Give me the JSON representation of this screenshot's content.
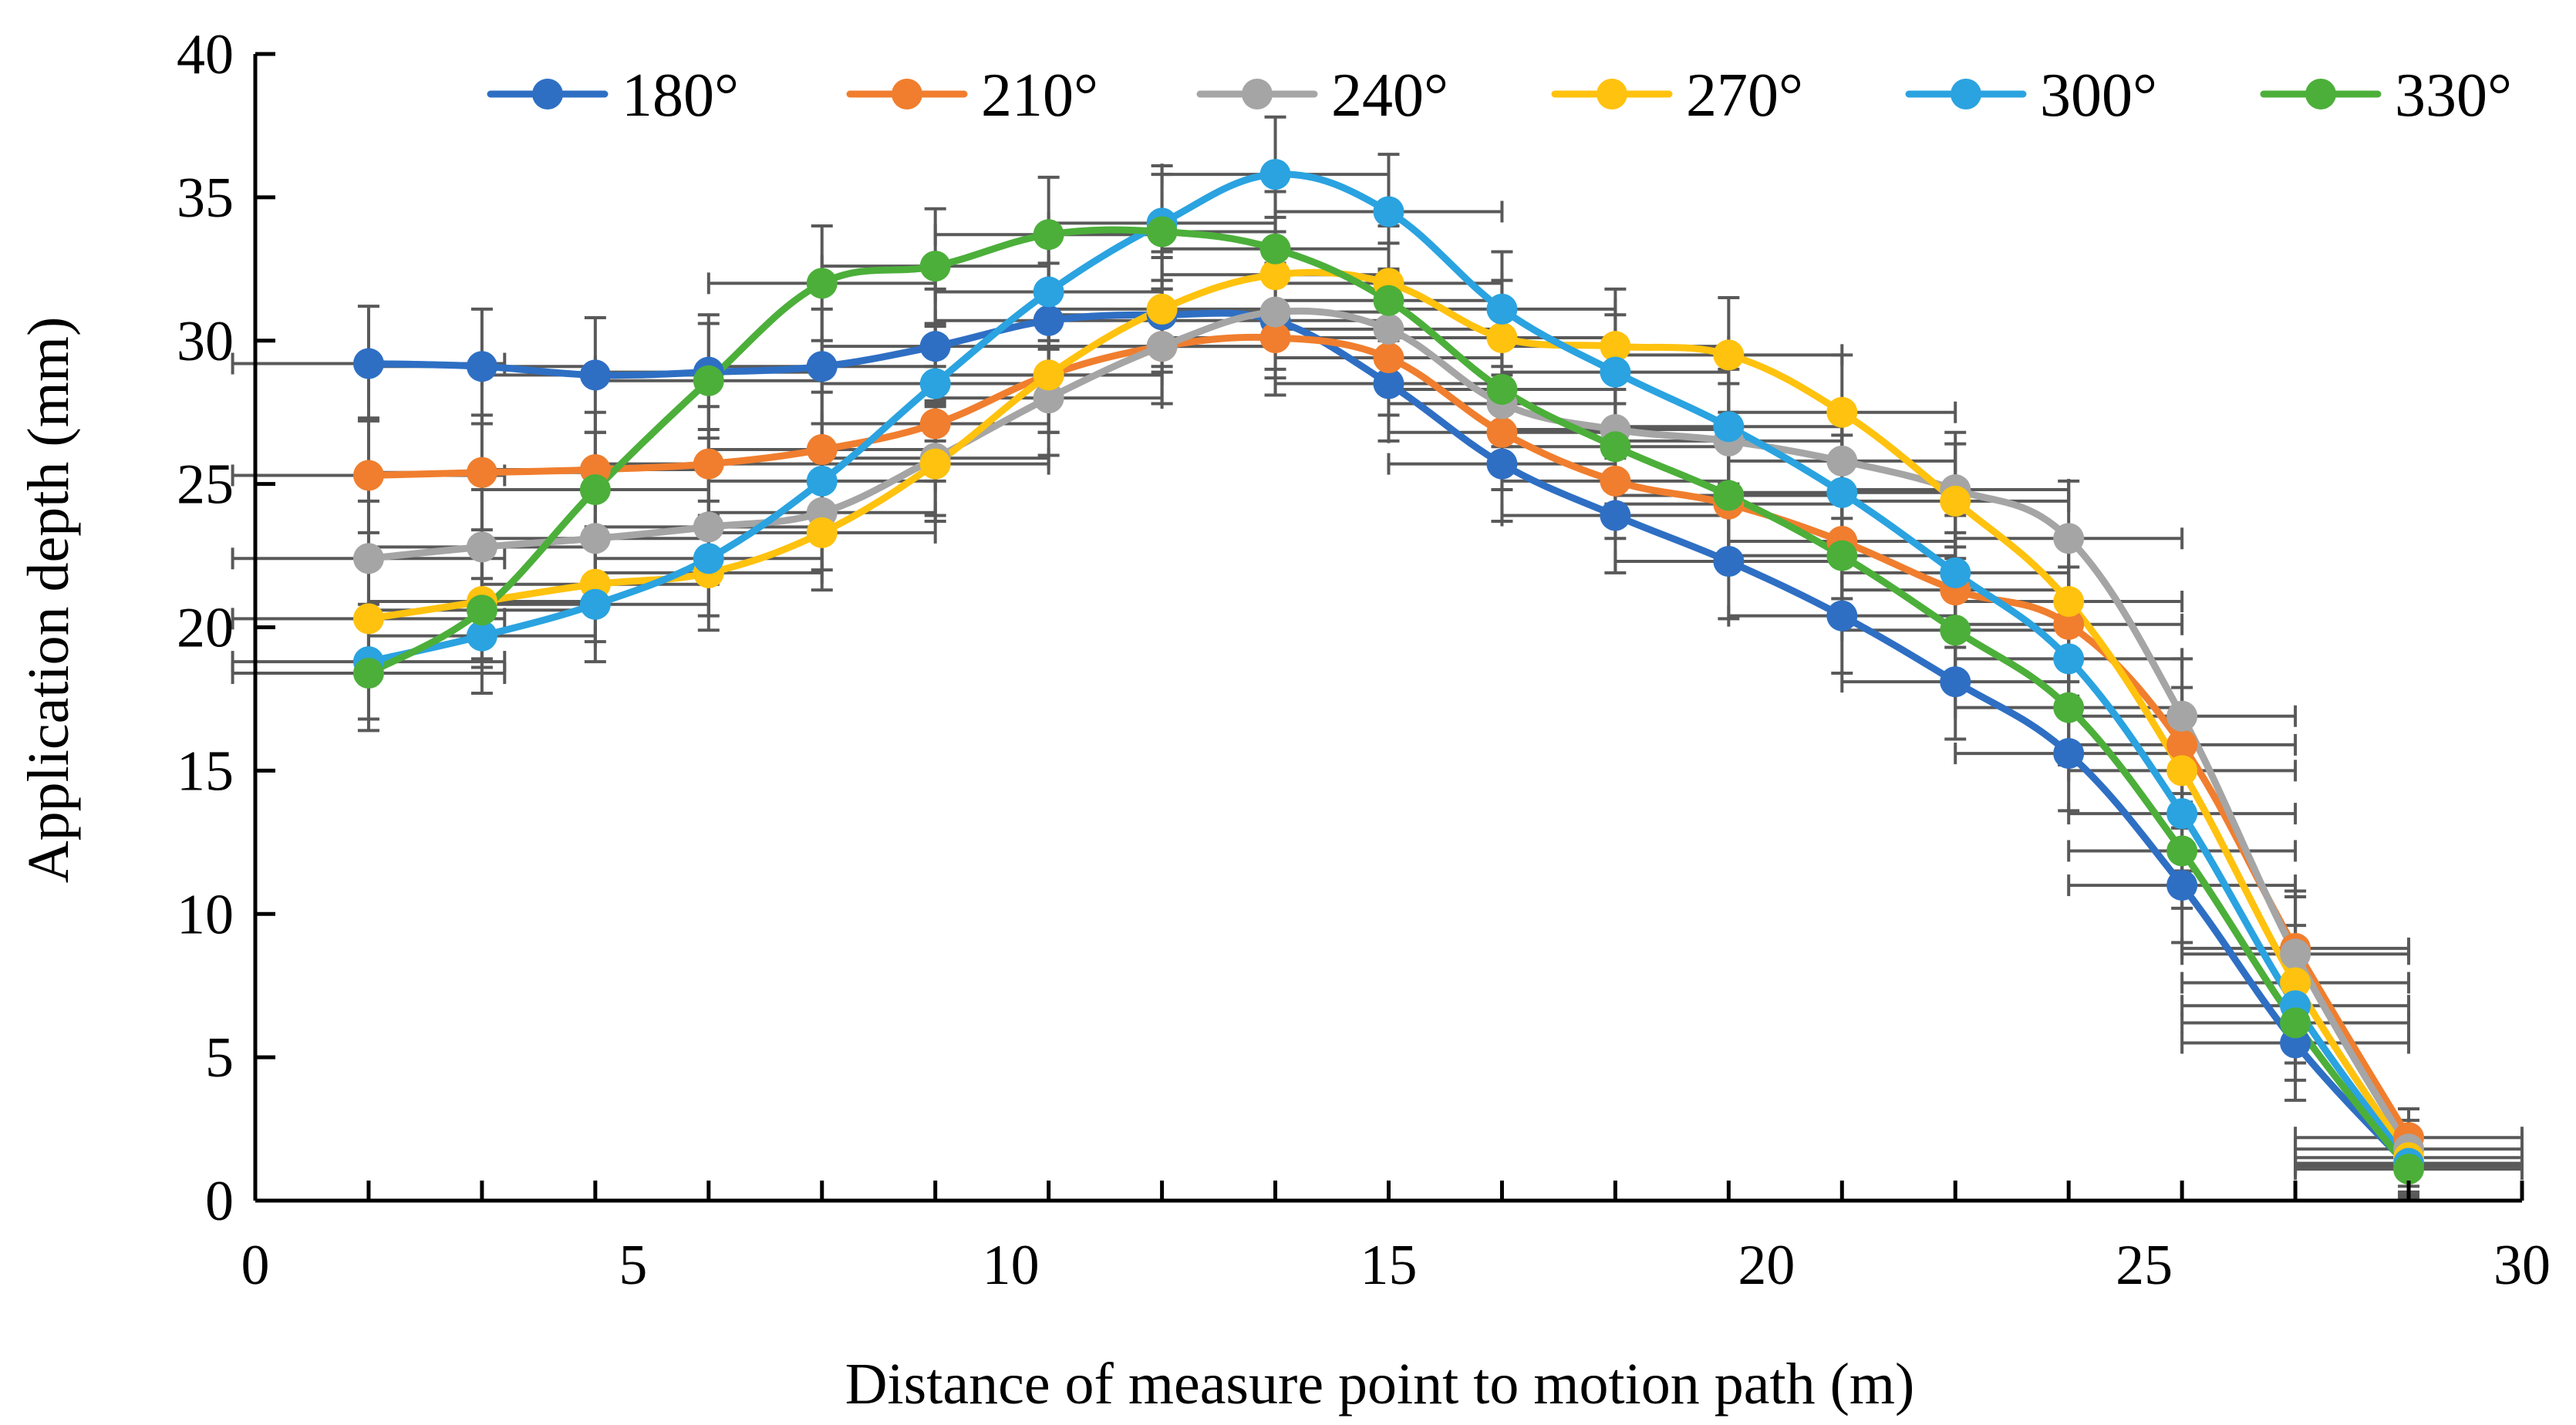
{
  "chart_data": {
    "type": "line",
    "title": "",
    "xlabel": "Distance of measure point to motion path (m)",
    "ylabel": "Application depth (mm)",
    "xlim": [
      0,
      30
    ],
    "ylim": [
      0,
      40
    ],
    "xticks": [
      0,
      5,
      10,
      15,
      20,
      25,
      30
    ],
    "yticks": [
      0,
      5,
      10,
      15,
      20,
      25,
      30,
      35,
      40
    ],
    "grid": false,
    "legend_position": "top",
    "x": [
      1.5,
      3,
      4.5,
      6,
      7.5,
      9,
      10.5,
      12,
      13.5,
      15,
      16.5,
      18,
      19.5,
      21,
      22.5,
      24,
      25.5,
      27,
      28.5
    ],
    "series": [
      {
        "name": "180°",
        "color": "#2E6FC4",
        "values": [
          29.2,
          29.1,
          28.8,
          28.9,
          29.1,
          29.8,
          30.7,
          30.9,
          30.7,
          28.5,
          25.7,
          23.9,
          22.3,
          20.4,
          18.1,
          15.6,
          11.0,
          5.5,
          1.2
        ],
        "x_error": [
          1.8,
          1.5,
          1.5,
          1.5,
          1.5,
          1.5,
          1.5,
          1.5,
          1.5,
          1.5,
          1.5,
          1.5,
          1.5,
          1.5,
          1.5,
          1.5,
          1.5,
          1.5,
          1.5
        ],
        "y_error": [
          2.0,
          2.0,
          2.0,
          2.0,
          2.0,
          2.0,
          2.0,
          2.0,
          2.0,
          2.0,
          2.0,
          2.0,
          2.0,
          2.0,
          2.0,
          2.0,
          2.0,
          2.0,
          1.0
        ]
      },
      {
        "name": "210°",
        "color": "#F07E2E",
        "values": [
          25.3,
          25.4,
          25.5,
          25.7,
          26.2,
          27.1,
          28.8,
          29.8,
          30.1,
          29.4,
          26.8,
          25.1,
          24.3,
          23.0,
          21.3,
          20.1,
          15.9,
          8.8,
          2.2
        ],
        "x_error": [
          1.8,
          1.5,
          1.5,
          1.5,
          1.5,
          1.5,
          1.5,
          1.5,
          1.5,
          1.5,
          1.5,
          1.5,
          1.5,
          1.5,
          1.5,
          1.5,
          1.5,
          1.5,
          1.5
        ],
        "y_error": [
          2.0,
          2.0,
          2.0,
          2.0,
          2.0,
          2.0,
          2.0,
          2.0,
          2.0,
          2.0,
          2.0,
          2.0,
          2.0,
          2.0,
          2.0,
          2.0,
          2.0,
          2.0,
          1.0
        ]
      },
      {
        "name": "240°",
        "color": "#A5A5A5",
        "values": [
          22.4,
          22.8,
          23.1,
          23.5,
          24.0,
          25.9,
          28.0,
          29.8,
          31.0,
          30.4,
          27.8,
          26.9,
          26.5,
          25.8,
          24.8,
          23.1,
          16.9,
          8.6,
          1.8
        ],
        "x_error": [
          1.8,
          1.5,
          1.5,
          1.5,
          1.5,
          1.5,
          1.5,
          1.5,
          1.5,
          1.5,
          1.5,
          1.5,
          1.5,
          1.5,
          1.5,
          1.5,
          1.5,
          1.5,
          1.5
        ],
        "y_error": [
          2.0,
          2.0,
          2.0,
          2.0,
          2.0,
          2.0,
          2.0,
          2.0,
          2.0,
          2.0,
          2.0,
          2.0,
          2.0,
          2.0,
          2.0,
          2.0,
          2.0,
          2.0,
          1.0
        ]
      },
      {
        "name": "270°",
        "color": "#FFC20E",
        "values": [
          20.3,
          20.9,
          21.5,
          21.9,
          23.3,
          25.7,
          28.8,
          31.1,
          32.3,
          32.0,
          30.1,
          29.8,
          29.5,
          27.5,
          24.4,
          20.9,
          15.0,
          7.6,
          1.5
        ],
        "x_error": [
          1.8,
          1.5,
          1.5,
          1.5,
          1.5,
          1.5,
          1.5,
          1.5,
          1.5,
          1.5,
          1.5,
          1.5,
          1.5,
          1.5,
          1.5,
          1.5,
          1.5,
          1.5,
          1.5
        ],
        "y_error": [
          2.0,
          2.0,
          2.0,
          2.0,
          2.0,
          2.0,
          2.0,
          2.0,
          2.0,
          2.0,
          2.0,
          2.0,
          2.0,
          2.0,
          2.0,
          2.0,
          2.0,
          2.0,
          1.0
        ]
      },
      {
        "name": "300°",
        "color": "#2AA3E0",
        "values": [
          18.8,
          19.7,
          20.8,
          22.4,
          25.1,
          28.5,
          31.7,
          34.1,
          35.8,
          34.5,
          31.1,
          28.9,
          27.0,
          24.7,
          21.9,
          18.9,
          13.5,
          6.8,
          1.3
        ],
        "x_error": [
          1.8,
          1.5,
          1.5,
          1.5,
          1.5,
          1.5,
          1.5,
          1.5,
          1.5,
          1.5,
          1.5,
          1.5,
          1.5,
          1.5,
          1.5,
          1.5,
          1.5,
          1.5,
          1.5
        ],
        "y_error": [
          2.0,
          2.0,
          2.0,
          2.0,
          2.0,
          2.0,
          2.0,
          2.0,
          2.0,
          2.0,
          2.0,
          2.0,
          2.0,
          2.0,
          2.0,
          2.0,
          2.0,
          2.0,
          1.0
        ]
      },
      {
        "name": "330°",
        "color": "#4CAF3A",
        "values": [
          18.4,
          20.6,
          24.8,
          28.6,
          32.0,
          32.6,
          33.7,
          33.8,
          33.2,
          31.4,
          28.3,
          26.3,
          24.6,
          22.5,
          19.9,
          17.2,
          12.2,
          6.2,
          1.1
        ],
        "x_error": [
          1.8,
          1.5,
          1.5,
          1.5,
          1.5,
          1.5,
          1.5,
          1.5,
          1.5,
          1.5,
          1.5,
          1.5,
          1.5,
          1.5,
          1.5,
          1.5,
          1.5,
          1.5,
          1.5
        ],
        "y_error": [
          2.0,
          2.0,
          2.0,
          2.0,
          2.0,
          2.0,
          2.0,
          2.0,
          2.0,
          2.0,
          2.0,
          2.0,
          2.0,
          2.0,
          2.0,
          2.0,
          2.0,
          2.0,
          1.0
        ]
      }
    ]
  }
}
